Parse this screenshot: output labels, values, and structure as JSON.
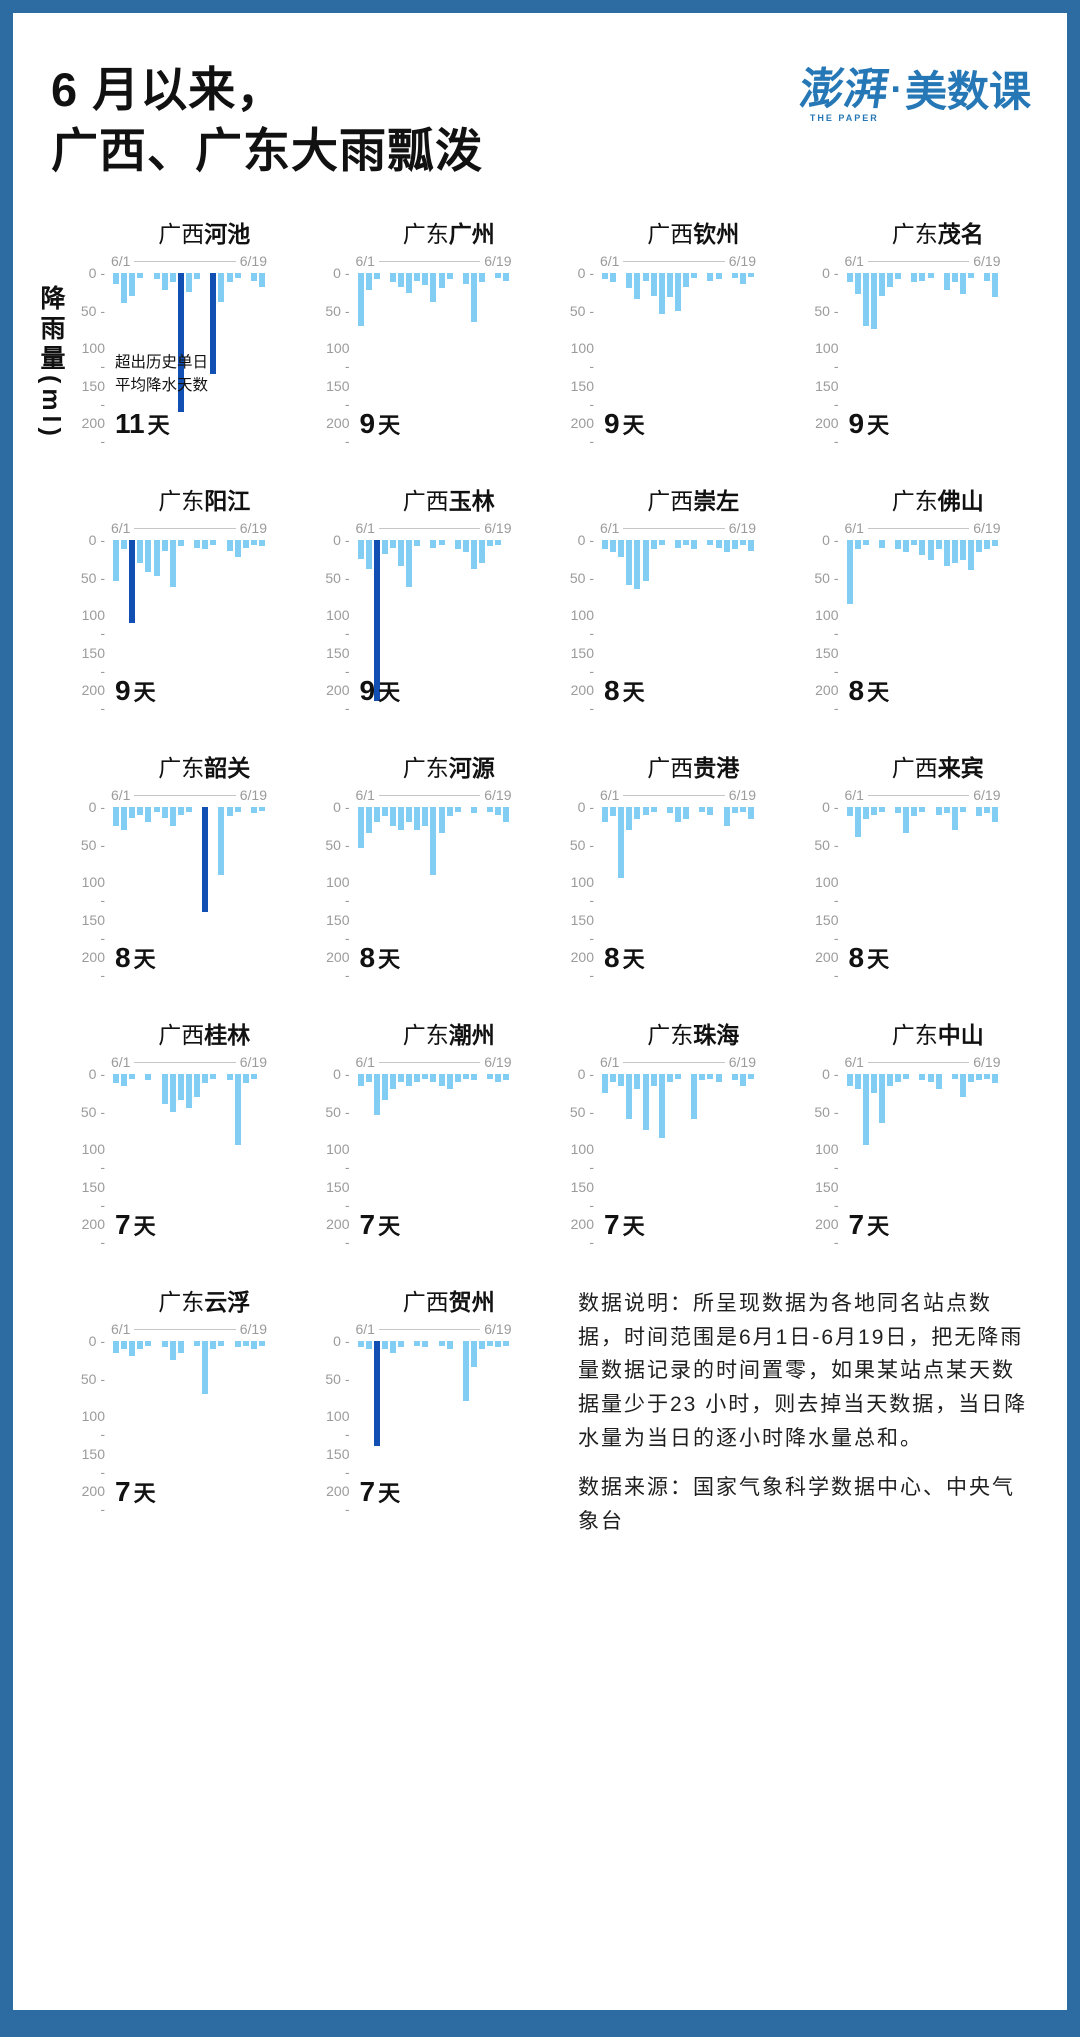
{
  "page": {
    "title_line1": "6 月以来，",
    "title_line2": "广西、广东大雨瓢泼",
    "logo": {
      "brand": "澎湃",
      "brand_sub": "THE PAPER",
      "separator": "·",
      "product": "美数课"
    },
    "y_axis_label": "降雨量(ml)"
  },
  "axis": {
    "x_start": "6/1",
    "x_end": "6/19",
    "y_ticks": [
      "0",
      "50",
      "100",
      "150",
      "200"
    ],
    "ylim": [
      0,
      200
    ],
    "days_span": 19
  },
  "annotation": {
    "lines": [
      "超出历史单日",
      "平均降水天数"
    ]
  },
  "colors": {
    "frame": "#2d6ca3",
    "bar_light": "#82cdf4",
    "bar_dark": "#1150b2",
    "logo_blue": "#2577b5",
    "axis_gray": "#9b9b9b"
  },
  "notes": {
    "description": "数据说明：所呈现数据为各地同名站点数据，时间范围是6月1日-6月19日，把无降雨量数据记录的时间置零，如果某站点某天数据量少于23 小时，则去掉当天数据，当日降水量为当日的逐小时降水量总和。",
    "source": "数据来源：国家气象科学数据中心、中央气象台"
  },
  "chart_data": [
    {
      "type": "bar",
      "region": "广西",
      "city": "河池",
      "days_value": "11",
      "days_unit": "天",
      "values": [
        15,
        40,
        30,
        6,
        0,
        8,
        22,
        12,
        185,
        25,
        8,
        0,
        135,
        38,
        12,
        6,
        0,
        10,
        18
      ],
      "dark_indices": [
        8,
        12
      ]
    },
    {
      "type": "bar",
      "region": "广东",
      "city": "广州",
      "days_value": "9",
      "days_unit": "天",
      "values": [
        70,
        22,
        8,
        0,
        12,
        18,
        26,
        10,
        16,
        38,
        20,
        8,
        0,
        15,
        65,
        12,
        0,
        6,
        10
      ],
      "dark_indices": []
    },
    {
      "type": "bar",
      "region": "广西",
      "city": "钦州",
      "days_value": "9",
      "days_unit": "天",
      "values": [
        8,
        12,
        0,
        20,
        35,
        10,
        30,
        55,
        32,
        50,
        18,
        6,
        0,
        10,
        8,
        0,
        6,
        14,
        5
      ],
      "dark_indices": []
    },
    {
      "type": "bar",
      "region": "广东",
      "city": "茂名",
      "days_value": "9",
      "days_unit": "天",
      "values": [
        12,
        28,
        70,
        75,
        30,
        18,
        8,
        0,
        12,
        10,
        6,
        0,
        22,
        12,
        28,
        6,
        0,
        10,
        32
      ],
      "dark_indices": []
    },
    {
      "type": "bar",
      "region": "广东",
      "city": "阳江",
      "days_value": "9",
      "days_unit": "天",
      "values": [
        55,
        12,
        110,
        30,
        42,
        48,
        15,
        62,
        8,
        0,
        10,
        12,
        6,
        0,
        14,
        22,
        10,
        6,
        8
      ],
      "dark_indices": [
        2
      ]
    },
    {
      "type": "bar",
      "region": "广西",
      "city": "玉林",
      "days_value": "9",
      "days_unit": "天",
      "values": [
        25,
        38,
        215,
        18,
        10,
        35,
        62,
        8,
        0,
        10,
        6,
        0,
        12,
        16,
        38,
        30,
        8,
        6,
        0
      ],
      "dark_indices": [
        2
      ]
    },
    {
      "type": "bar",
      "region": "广西",
      "city": "崇左",
      "days_value": "8",
      "days_unit": "天",
      "values": [
        12,
        16,
        22,
        60,
        65,
        55,
        12,
        6,
        0,
        10,
        6,
        12,
        0,
        6,
        10,
        16,
        12,
        6,
        14
      ],
      "dark_indices": []
    },
    {
      "type": "bar",
      "region": "广东",
      "city": "佛山",
      "days_value": "8",
      "days_unit": "天",
      "values": [
        85,
        12,
        6,
        0,
        10,
        0,
        12,
        16,
        6,
        20,
        26,
        12,
        35,
        30,
        26,
        40,
        16,
        12,
        8
      ],
      "dark_indices": []
    },
    {
      "type": "bar",
      "region": "广东",
      "city": "韶关",
      "days_value": "8",
      "days_unit": "天",
      "values": [
        25,
        30,
        15,
        10,
        20,
        6,
        15,
        25,
        10,
        6,
        0,
        140,
        0,
        90,
        12,
        6,
        0,
        8,
        5
      ],
      "dark_indices": [
        11
      ]
    },
    {
      "type": "bar",
      "region": "广东",
      "city": "河源",
      "days_value": "8",
      "days_unit": "天",
      "values": [
        55,
        35,
        20,
        12,
        25,
        30,
        20,
        30,
        25,
        90,
        35,
        12,
        6,
        0,
        8,
        0,
        6,
        10,
        20
      ],
      "dark_indices": []
    },
    {
      "type": "bar",
      "region": "广西",
      "city": "贵港",
      "days_value": "8",
      "days_unit": "天",
      "values": [
        20,
        12,
        95,
        30,
        16,
        10,
        6,
        0,
        8,
        20,
        16,
        0,
        6,
        10,
        0,
        25,
        8,
        6,
        16
      ],
      "dark_indices": []
    },
    {
      "type": "bar",
      "region": "广西",
      "city": "来宾",
      "days_value": "8",
      "days_unit": "天",
      "values": [
        12,
        40,
        16,
        10,
        6,
        0,
        8,
        35,
        12,
        6,
        0,
        10,
        8,
        30,
        6,
        0,
        12,
        8,
        20
      ],
      "dark_indices": []
    },
    {
      "type": "bar",
      "region": "广西",
      "city": "桂林",
      "days_value": "7",
      "days_unit": "天",
      "values": [
        12,
        16,
        6,
        0,
        8,
        0,
        40,
        50,
        35,
        45,
        30,
        12,
        6,
        0,
        8,
        95,
        12,
        6,
        0
      ],
      "dark_indices": []
    },
    {
      "type": "bar",
      "region": "广东",
      "city": "潮州",
      "days_value": "7",
      "days_unit": "天",
      "values": [
        16,
        10,
        55,
        35,
        20,
        10,
        16,
        10,
        6,
        10,
        16,
        20,
        10,
        6,
        8,
        0,
        6,
        10,
        8
      ],
      "dark_indices": []
    },
    {
      "type": "bar",
      "region": "广东",
      "city": "珠海",
      "days_value": "7",
      "days_unit": "天",
      "values": [
        25,
        10,
        16,
        60,
        20,
        75,
        16,
        85,
        10,
        6,
        0,
        60,
        8,
        6,
        10,
        0,
        8,
        16,
        6
      ],
      "dark_indices": []
    },
    {
      "type": "bar",
      "region": "广东",
      "city": "中山",
      "days_value": "7",
      "days_unit": "天",
      "values": [
        16,
        20,
        95,
        25,
        65,
        16,
        10,
        6,
        0,
        8,
        10,
        20,
        0,
        6,
        30,
        10,
        8,
        6,
        12
      ],
      "dark_indices": []
    },
    {
      "type": "bar",
      "region": "广东",
      "city": "云浮",
      "days_value": "7",
      "days_unit": "天",
      "values": [
        16,
        10,
        20,
        10,
        6,
        0,
        8,
        25,
        16,
        0,
        6,
        70,
        10,
        6,
        0,
        8,
        6,
        10,
        6
      ],
      "dark_indices": []
    },
    {
      "type": "bar",
      "region": "广西",
      "city": "贺州",
      "days_value": "7",
      "days_unit": "天",
      "values": [
        8,
        10,
        140,
        10,
        16,
        8,
        0,
        6,
        8,
        0,
        6,
        10,
        0,
        80,
        35,
        10,
        6,
        8,
        6
      ],
      "dark_indices": [
        2
      ]
    }
  ]
}
